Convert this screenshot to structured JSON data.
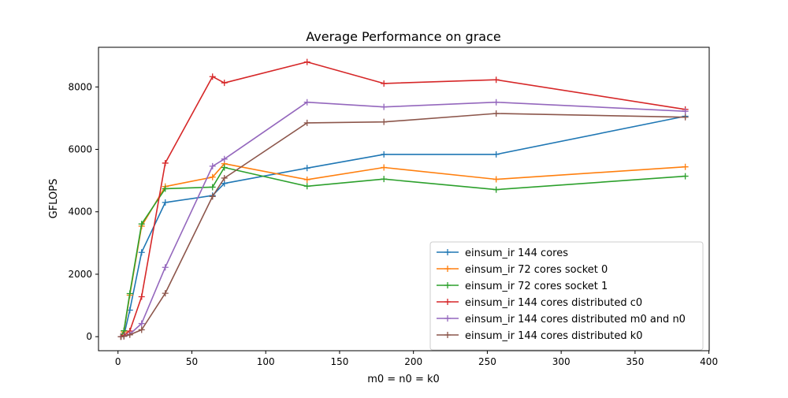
{
  "chart_data": {
    "type": "line",
    "title": "Average Performance on grace",
    "xlabel": "m0 = n0 = k0",
    "ylabel": "GFLOPS",
    "xlim": [
      -13.2,
      400.2
    ],
    "ylim": [
      -450,
      9270
    ],
    "xticks": [
      0,
      50,
      100,
      150,
      200,
      250,
      300,
      350,
      400
    ],
    "yticks": [
      0,
      2000,
      4000,
      6000,
      8000
    ],
    "grid": false,
    "legend_position": "lower-right",
    "x": [
      2,
      4,
      8,
      16,
      32,
      64,
      72,
      128,
      180,
      256,
      384
    ],
    "series": [
      {
        "name": "einsum_ir 144 cores",
        "color": "#1f77b4",
        "values": [
          0,
          30,
          850,
          2700,
          4300,
          4520,
          4910,
          5400,
          5840,
          5840,
          7060
        ]
      },
      {
        "name": "einsum_ir 72 cores socket 0",
        "color": "#ff7f0e",
        "values": [
          0,
          150,
          1330,
          3540,
          4810,
          5110,
          5540,
          5030,
          5420,
          5040,
          5440
        ]
      },
      {
        "name": "einsum_ir 72 cores socket 1",
        "color": "#2ca02c",
        "values": [
          0,
          190,
          1380,
          3610,
          4740,
          4790,
          5420,
          4820,
          5050,
          4710,
          5140
        ]
      },
      {
        "name": "einsum_ir 144 cores distributed c0",
        "color": "#d62728",
        "values": [
          0,
          40,
          180,
          1280,
          5560,
          8330,
          8130,
          8800,
          8110,
          8230,
          7280
        ]
      },
      {
        "name": "einsum_ir 144 cores distributed m0 and n0",
        "color": "#9467bd",
        "values": [
          0,
          10,
          80,
          420,
          2220,
          5460,
          5690,
          7510,
          7360,
          7510,
          7220
        ]
      },
      {
        "name": "einsum_ir 144 cores distributed k0",
        "color": "#8c564b",
        "values": [
          0,
          10,
          60,
          220,
          1390,
          4490,
          5080,
          6850,
          6880,
          7150,
          7030
        ]
      }
    ]
  }
}
